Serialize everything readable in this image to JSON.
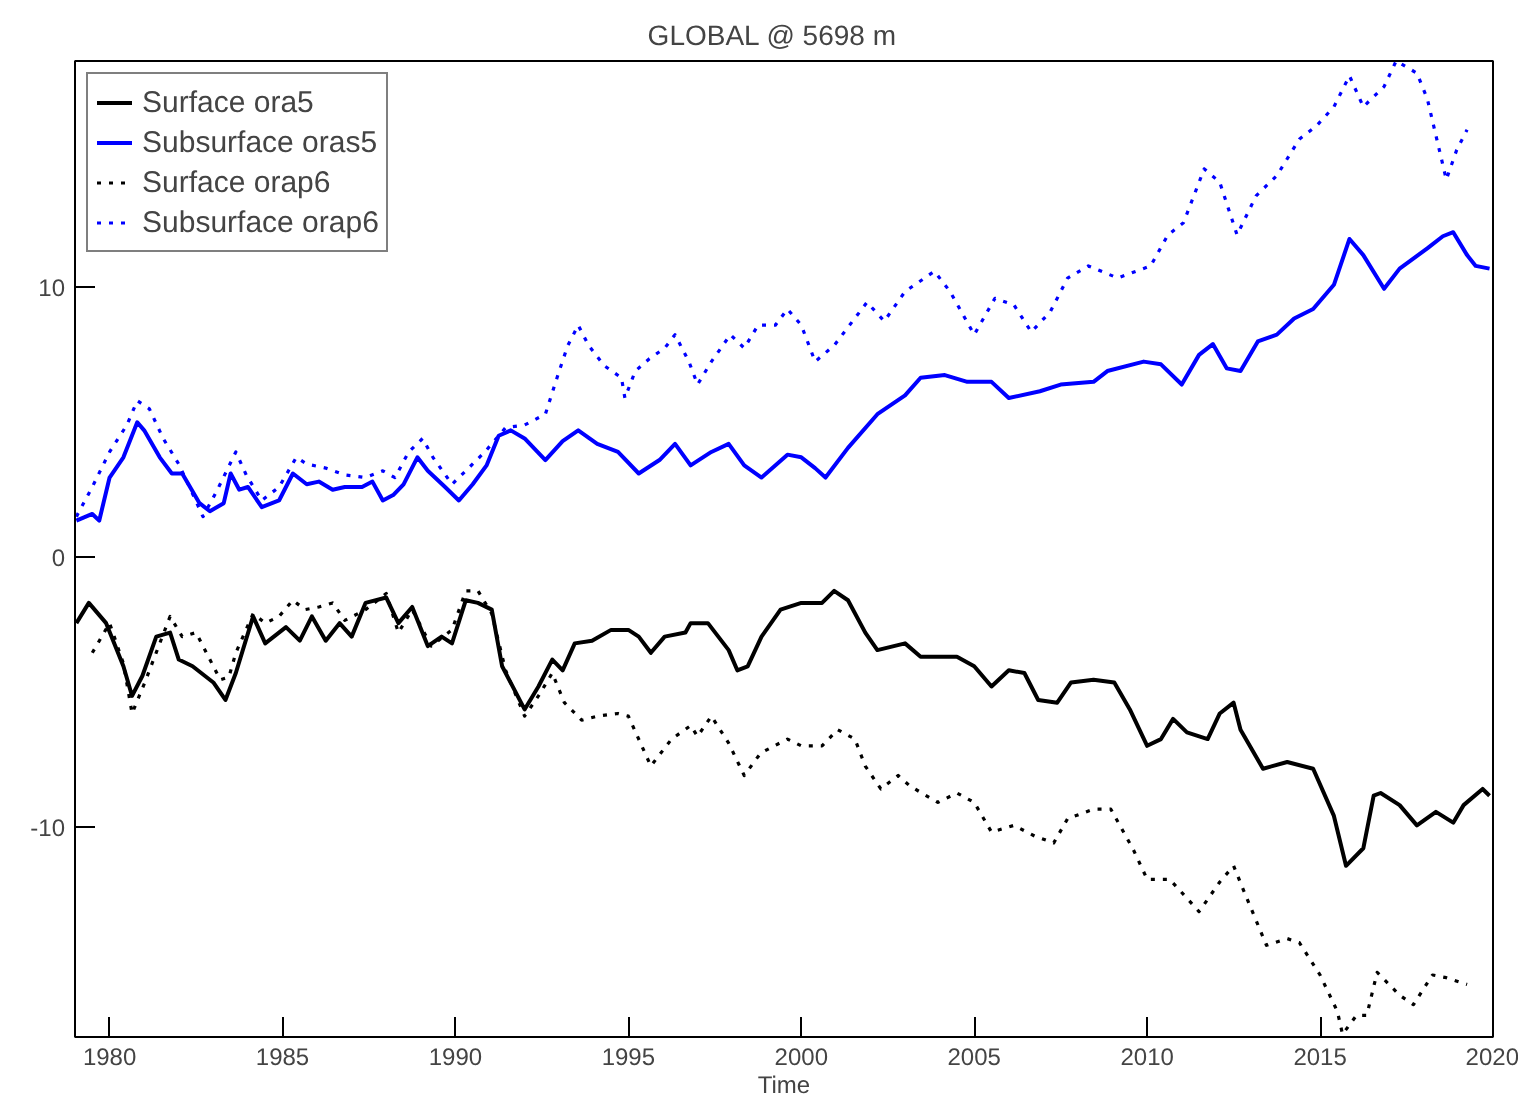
{
  "chart_data": {
    "type": "line",
    "title": "GLOBAL  @   5698 m",
    "xlabel": "Time",
    "xlim": [
      1979,
      2020
    ],
    "ylim": [
      -17.8,
      18.4
    ],
    "xticks": [
      1980,
      1985,
      1990,
      1995,
      2000,
      2005,
      2010,
      2015,
      2020
    ],
    "yticks": [
      -10,
      0,
      10
    ],
    "grid": false,
    "legend": "top left",
    "marker": "none",
    "series": [
      {
        "name": "Surface ora5",
        "color": "#000000",
        "line_style": "solid",
        "x": [
          1979.04,
          1979.4,
          1979.9,
          1980.4,
          1980.65,
          1980.95,
          1981.35,
          1981.75,
          1982.0,
          1982.4,
          1983.0,
          1983.35,
          1983.65,
          1984.15,
          1984.5,
          1985.1,
          1985.5,
          1985.85,
          1986.25,
          1986.65,
          1987.0,
          1987.4,
          1988.0,
          1988.35,
          1988.75,
          1989.2,
          1989.6,
          1989.9,
          1990.3,
          1990.65,
          1991.05,
          1991.35,
          1992.0,
          1992.4,
          1992.8,
          1993.1,
          1993.45,
          1993.95,
          1994.5,
          1995.0,
          1995.3,
          1995.65,
          1996.05,
          1996.65,
          1996.8,
          1997.3,
          1997.9,
          1998.15,
          1998.45,
          1998.85,
          1999.4,
          2000.0,
          2000.6,
          2000.95,
          2001.35,
          2001.85,
          2002.2,
          2003.0,
          2003.45,
          2004.5,
          2005.0,
          2005.5,
          2006.0,
          2006.45,
          2006.85,
          2007.4,
          2007.8,
          2008.45,
          2009.05,
          2009.5,
          2010.0,
          2010.4,
          2010.75,
          2011.15,
          2011.75,
          2012.1,
          2012.5,
          2012.7,
          2013.35,
          2014.05,
          2014.8,
          2015.4,
          2015.75,
          2016.25,
          2016.55,
          2016.75,
          2017.3,
          2017.8,
          2018.35,
          2018.85,
          2019.15,
          2019.7,
          2019.9
        ],
        "values": [
          -2.45,
          -1.7,
          -2.45,
          -4.05,
          -5.15,
          -4.4,
          -2.95,
          -2.8,
          -3.8,
          -4.05,
          -4.65,
          -5.3,
          -4.3,
          -2.2,
          -3.2,
          -2.6,
          -3.1,
          -2.2,
          -3.1,
          -2.45,
          -2.95,
          -1.7,
          -1.5,
          -2.45,
          -1.85,
          -3.3,
          -2.95,
          -3.2,
          -1.6,
          -1.7,
          -1.95,
          -4.05,
          -5.65,
          -4.8,
          -3.8,
          -4.2,
          -3.2,
          -3.1,
          -2.7,
          -2.7,
          -2.95,
          -3.55,
          -2.95,
          -2.8,
          -2.45,
          -2.45,
          -3.45,
          -4.2,
          -4.05,
          -2.95,
          -1.95,
          -1.7,
          -1.7,
          -1.25,
          -1.6,
          -2.8,
          -3.45,
          -3.2,
          -3.7,
          -3.7,
          -4.05,
          -4.8,
          -4.2,
          -4.3,
          -5.3,
          -5.4,
          -4.65,
          -4.55,
          -4.65,
          -5.65,
          -7.0,
          -6.75,
          -6.0,
          -6.5,
          -6.75,
          -5.8,
          -5.4,
          -6.4,
          -7.85,
          -7.6,
          -7.85,
          -9.6,
          -11.45,
          -10.8,
          -8.85,
          -8.75,
          -9.2,
          -9.95,
          -9.45,
          -9.85,
          -9.2,
          -8.6,
          -8.85
        ]
      },
      {
        "name": "Subsurface oras5",
        "color": "#0000ff",
        "line_style": "solid",
        "x": [
          1979.04,
          1979.5,
          1979.7,
          1980.0,
          1980.4,
          1980.8,
          1981.0,
          1981.45,
          1981.8,
          1982.1,
          1982.6,
          1982.9,
          1983.3,
          1983.5,
          1983.75,
          1984.0,
          1984.4,
          1984.9,
          1985.3,
          1985.7,
          1986.05,
          1986.45,
          1986.8,
          1987.3,
          1987.6,
          1987.9,
          1988.2,
          1988.5,
          1988.9,
          1989.2,
          1989.7,
          1990.1,
          1990.5,
          1990.9,
          1991.25,
          1991.6,
          1992.0,
          1992.6,
          1993.1,
          1993.55,
          1994.1,
          1994.7,
          1995.3,
          1995.9,
          1996.35,
          1996.8,
          1997.4,
          1997.9,
          1998.35,
          1998.85,
          1999.6,
          2000.0,
          2000.4,
          2000.7,
          2001.35,
          2002.2,
          2003.0,
          2003.45,
          2004.15,
          2004.8,
          2005.5,
          2006.0,
          2006.9,
          2007.5,
          2008.45,
          2008.85,
          2009.9,
          2010.4,
          2011.0,
          2011.5,
          2011.9,
          2012.3,
          2012.7,
          2013.2,
          2013.75,
          2014.25,
          2014.8,
          2015.4,
          2015.85,
          2016.25,
          2016.85,
          2017.3,
          2018.1,
          2018.55,
          2018.85,
          2019.25,
          2019.5,
          2019.9
        ],
        "values": [
          1.35,
          1.6,
          1.35,
          2.95,
          3.7,
          5.0,
          4.7,
          3.7,
          3.1,
          3.1,
          2.0,
          1.7,
          2.0,
          3.1,
          2.5,
          2.6,
          1.85,
          2.1,
          3.1,
          2.7,
          2.8,
          2.5,
          2.6,
          2.6,
          2.8,
          2.1,
          2.3,
          2.7,
          3.7,
          3.2,
          2.6,
          2.1,
          2.7,
          3.4,
          4.5,
          4.7,
          4.4,
          3.6,
          4.3,
          4.7,
          4.2,
          3.9,
          3.1,
          3.6,
          4.2,
          3.4,
          3.9,
          4.2,
          3.4,
          2.95,
          3.8,
          3.7,
          3.3,
          2.95,
          4.05,
          5.3,
          6.0,
          6.65,
          6.75,
          6.5,
          6.5,
          5.9,
          6.15,
          6.4,
          6.5,
          6.9,
          7.25,
          7.15,
          6.4,
          7.5,
          7.9,
          7.0,
          6.9,
          8.0,
          8.25,
          8.85,
          9.2,
          10.1,
          11.8,
          11.2,
          9.95,
          10.7,
          11.45,
          11.9,
          12.05,
          11.2,
          10.8,
          10.7
        ]
      },
      {
        "name": "Surface orap6",
        "color": "#000000",
        "line_style": "dotted",
        "x": [
          1979.5,
          1980.0,
          1980.4,
          1980.65,
          1981.05,
          1981.45,
          1981.75,
          1982.1,
          1982.5,
          1982.9,
          1983.2,
          1983.45,
          1983.65,
          1984.15,
          1984.5,
          1984.9,
          1985.3,
          1985.65,
          1986.05,
          1986.45,
          1986.8,
          1987.4,
          1988.0,
          1988.35,
          1988.75,
          1989.3,
          1989.9,
          1990.3,
          1990.65,
          1991.05,
          1991.45,
          1992.0,
          1992.4,
          1992.8,
          1993.15,
          1993.65,
          1994.1,
          1994.7,
          1995.0,
          1995.65,
          1996.25,
          1996.8,
          1997.0,
          1997.4,
          1997.9,
          1998.35,
          1998.75,
          1998.85,
          1999.6,
          2000.0,
          2000.6,
          2001.05,
          2001.55,
          2001.85,
          2002.3,
          2002.8,
          2003.15,
          2003.95,
          2004.5,
          2005.0,
          2005.5,
          2006.15,
          2006.75,
          2007.3,
          2007.7,
          2008.45,
          2008.95,
          2009.6,
          2010.0,
          2010.65,
          2011.15,
          2011.5,
          2012.1,
          2012.5,
          2012.8,
          2013.45,
          2014.05,
          2014.4,
          2015.0,
          2015.5,
          2015.65,
          2016.05,
          2016.35,
          2016.65,
          2017.3,
          2017.7,
          2018.25,
          2018.65,
          2019.25
        ],
        "values": [
          -3.55,
          -2.45,
          -3.95,
          -5.8,
          -4.55,
          -3.2,
          -2.2,
          -2.95,
          -2.8,
          -3.8,
          -4.55,
          -4.45,
          -3.55,
          -2.1,
          -2.45,
          -2.2,
          -1.6,
          -1.95,
          -1.85,
          -1.7,
          -2.35,
          -1.95,
          -1.35,
          -2.8,
          -1.95,
          -3.3,
          -2.7,
          -1.25,
          -1.25,
          -2.1,
          -4.2,
          -5.9,
          -5.15,
          -4.3,
          -5.4,
          -6.05,
          -5.9,
          -5.8,
          -5.9,
          -7.75,
          -6.75,
          -6.25,
          -6.65,
          -5.9,
          -6.9,
          -8.1,
          -7.4,
          -7.25,
          -6.75,
          -7.0,
          -7.0,
          -6.4,
          -6.75,
          -7.75,
          -8.6,
          -8.1,
          -8.5,
          -9.1,
          -8.75,
          -9.1,
          -10.2,
          -9.95,
          -10.35,
          -10.6,
          -9.7,
          -9.35,
          -9.35,
          -10.85,
          -11.95,
          -11.95,
          -12.65,
          -13.15,
          -12.05,
          -11.45,
          -12.4,
          -14.4,
          -14.15,
          -14.3,
          -15.5,
          -16.85,
          -17.7,
          -17.0,
          -17.0,
          -15.4,
          -16.25,
          -16.6,
          -15.5,
          -15.6,
          -15.85
        ]
      },
      {
        "name": "Subsurface orap6",
        "color": "#0000ff",
        "line_style": "dotted",
        "x": [
          1979.04,
          1979.5,
          1980.0,
          1980.5,
          1980.8,
          1981.15,
          1981.55,
          1982.0,
          1982.4,
          1982.7,
          1983.1,
          1983.65,
          1983.95,
          1984.4,
          1984.9,
          1985.4,
          1985.7,
          1986.25,
          1986.8,
          1987.4,
          1987.9,
          1988.25,
          1988.65,
          1989.05,
          1989.35,
          1989.9,
          1990.3,
          1990.85,
          1991.45,
          1992.0,
          1992.6,
          1993.0,
          1993.25,
          1993.55,
          1993.85,
          1994.3,
          1994.8,
          1994.9,
          1995.2,
          1995.6,
          1996.05,
          1996.35,
          1996.75,
          1997.0,
          1997.4,
          1997.95,
          1998.35,
          1998.75,
          1999.25,
          1999.6,
          2000.0,
          2000.4,
          2000.95,
          2001.9,
          2002.4,
          2003.0,
          2003.85,
          2004.3,
          2005.0,
          2005.6,
          2006.15,
          2006.65,
          2007.2,
          2007.7,
          2008.3,
          2009.15,
          2010.1,
          2010.6,
          2011.05,
          2011.65,
          2012.1,
          2012.6,
          2013.15,
          2013.75,
          2014.4,
          2014.9,
          2015.4,
          2015.85,
          2016.25,
          2016.85,
          2017.2,
          2017.8,
          2018.1,
          2018.65,
          2018.95,
          2019.25
        ],
        "values": [
          1.5,
          2.6,
          3.9,
          4.9,
          5.8,
          5.5,
          4.4,
          3.45,
          2.35,
          1.5,
          2.45,
          3.9,
          3.05,
          2.1,
          2.6,
          3.7,
          3.45,
          3.3,
          3.05,
          2.95,
          3.2,
          2.95,
          3.9,
          4.4,
          3.7,
          2.7,
          3.2,
          3.9,
          4.8,
          4.9,
          5.3,
          6.9,
          7.85,
          8.6,
          7.85,
          7.1,
          6.65,
          5.9,
          6.9,
          7.35,
          7.75,
          8.25,
          7.25,
          6.4,
          7.25,
          8.25,
          7.75,
          8.6,
          8.6,
          9.2,
          8.6,
          7.25,
          7.85,
          9.45,
          8.75,
          9.85,
          10.6,
          9.85,
          8.25,
          9.6,
          9.35,
          8.35,
          9.1,
          10.35,
          10.8,
          10.35,
          10.8,
          11.95,
          12.4,
          14.4,
          13.9,
          11.95,
          13.4,
          14.15,
          15.5,
          16.0,
          16.7,
          17.85,
          16.7,
          17.45,
          18.4,
          17.95,
          17.0,
          14.0,
          15.1,
          15.85
        ]
      }
    ]
  }
}
